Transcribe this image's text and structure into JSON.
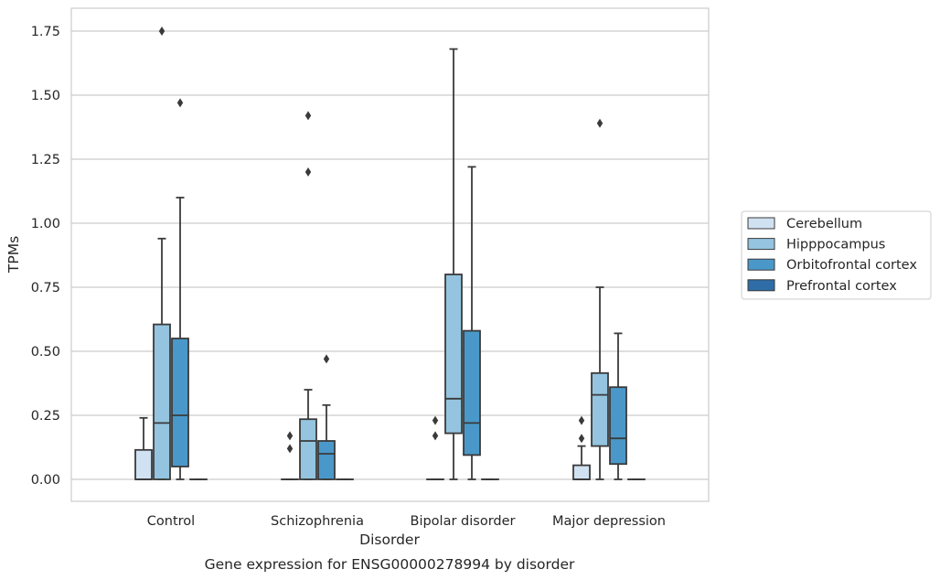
{
  "chart_data": {
    "type": "boxplot",
    "caption": "Gene expression for ENSG00000278994 by disorder",
    "xlabel": "Disorder",
    "ylabel": "TPMs",
    "ylim": [
      -0.085,
      1.84
    ],
    "yticks": [
      "0.00",
      "0.25",
      "0.50",
      "0.75",
      "1.00",
      "1.25",
      "1.50",
      "1.75"
    ],
    "grid": "horizontal",
    "legend_position": "right",
    "categories": [
      "Control",
      "Schizophrenia",
      "Bipolar disorder",
      "Major depression"
    ],
    "series": [
      {
        "name": "Cerebellum",
        "color": "#d0e1f2",
        "boxes": [
          {
            "min": 0,
            "q1": 0,
            "median": 0,
            "q3": 0.115,
            "max": 0.24,
            "outliers": []
          },
          {
            "min": 0,
            "q1": 0,
            "median": 0,
            "q3": 0,
            "max": 0,
            "outliers": [
              0.12,
              0.17
            ]
          },
          {
            "min": 0,
            "q1": 0,
            "median": 0,
            "q3": 0,
            "max": 0,
            "outliers": [
              0.17,
              0.23
            ]
          },
          {
            "min": 0,
            "q1": 0,
            "median": 0,
            "q3": 0.055,
            "max": 0.13,
            "outliers": [
              0.16,
              0.23
            ]
          }
        ]
      },
      {
        "name": "Hipppocampus",
        "color": "#94c4df",
        "boxes": [
          {
            "min": 0,
            "q1": 0,
            "median": 0.22,
            "q3": 0.605,
            "max": 0.94,
            "outliers": [
              1.75
            ]
          },
          {
            "min": 0,
            "q1": 0,
            "median": 0.15,
            "q3": 0.235,
            "max": 0.35,
            "outliers": [
              1.2,
              1.42
            ]
          },
          {
            "min": 0,
            "q1": 0.18,
            "median": 0.315,
            "q3": 0.8,
            "max": 1.68,
            "outliers": []
          },
          {
            "min": 0,
            "q1": 0.13,
            "median": 0.33,
            "q3": 0.415,
            "max": 0.75,
            "outliers": [
              1.39
            ]
          }
        ]
      },
      {
        "name": "Orbitofrontal cortex",
        "color": "#4a98c9",
        "boxes": [
          {
            "min": 0,
            "q1": 0.05,
            "median": 0.25,
            "q3": 0.55,
            "max": 1.1,
            "outliers": [
              1.47
            ]
          },
          {
            "min": 0,
            "q1": 0,
            "median": 0.1,
            "q3": 0.15,
            "max": 0.29,
            "outliers": [
              0.47
            ]
          },
          {
            "min": 0,
            "q1": 0.095,
            "median": 0.22,
            "q3": 0.58,
            "max": 1.22,
            "outliers": []
          },
          {
            "min": 0,
            "q1": 0.06,
            "median": 0.16,
            "q3": 0.36,
            "max": 0.57,
            "outliers": []
          }
        ]
      },
      {
        "name": "Prefrontal cortex",
        "color": "#2e6da7",
        "boxes": [
          {
            "min": 0,
            "q1": 0,
            "median": 0,
            "q3": 0,
            "max": 0,
            "outliers": []
          },
          {
            "min": 0,
            "q1": 0,
            "median": 0,
            "q3": 0,
            "max": 0,
            "outliers": []
          },
          {
            "min": 0,
            "q1": 0,
            "median": 0,
            "q3": 0,
            "max": 0,
            "outliers": []
          },
          {
            "min": 0,
            "q1": 0,
            "median": 0,
            "q3": 0,
            "max": 0,
            "outliers": []
          }
        ]
      }
    ]
  }
}
